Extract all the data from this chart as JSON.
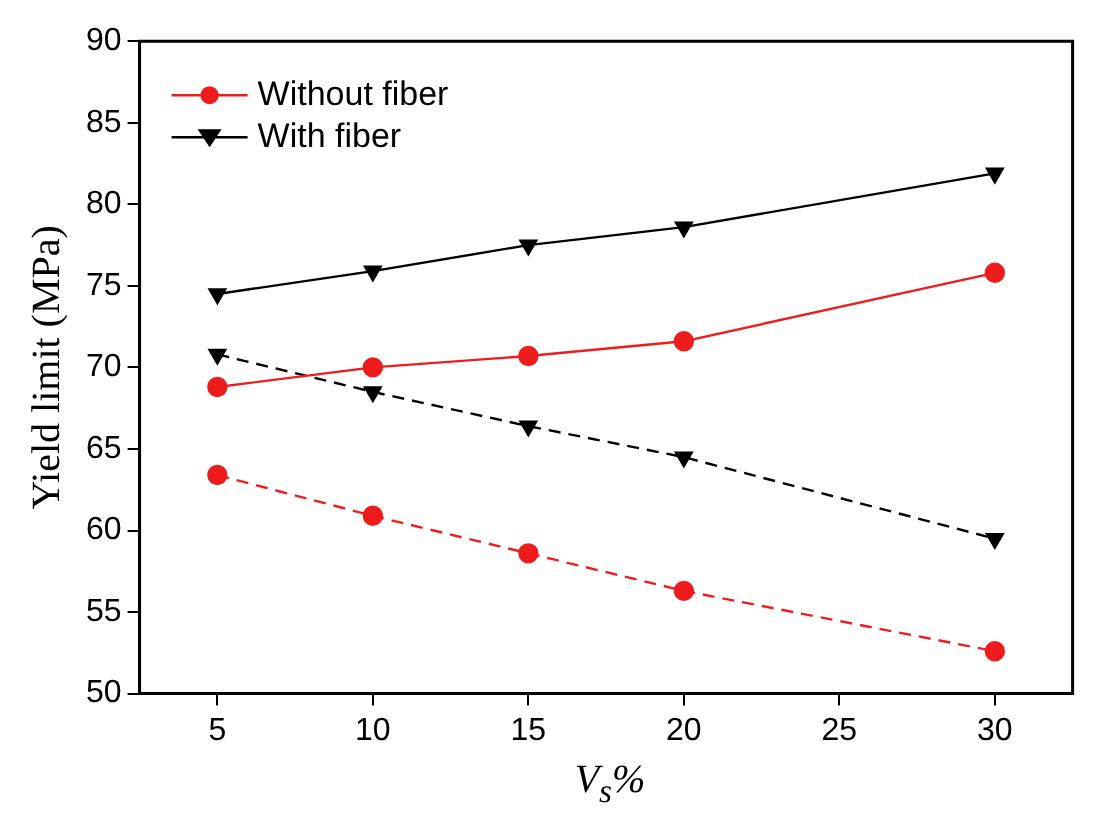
{
  "chart_data": {
    "type": "line",
    "xlabel": "V$_{s}$%",
    "ylabel": "Yield limit (MPa)",
    "x": [
      5,
      10,
      15,
      20,
      30
    ],
    "series": [
      {
        "name": "Without fiber",
        "color": "#ee1c1c",
        "marker": "circle",
        "line_style": "solid",
        "values": [
          68.8,
          70.0,
          70.7,
          71.6,
          75.8
        ]
      },
      {
        "name": "With fiber",
        "color": "#000000",
        "marker": "triangle",
        "line_style": "solid",
        "values": [
          74.5,
          75.9,
          77.5,
          78.6,
          81.9
        ]
      },
      {
        "color": "#ee1c1c",
        "marker": "circle",
        "line_style": "dashed",
        "values": [
          63.4,
          60.9,
          58.6,
          56.3,
          52.6
        ]
      },
      {
        "color": "#000000",
        "marker": "triangle",
        "line_style": "dashed",
        "values": [
          70.8,
          68.5,
          66.4,
          64.5,
          59.5
        ]
      }
    ],
    "xlim": [
      2.5,
      32.5
    ],
    "xticks": [
      5,
      10,
      15,
      20,
      25,
      30
    ],
    "ylim": [
      50,
      90
    ],
    "yticks": [
      50,
      55,
      60,
      65,
      70,
      75,
      80,
      85,
      90
    ],
    "grid": false,
    "legend": "top left"
  }
}
